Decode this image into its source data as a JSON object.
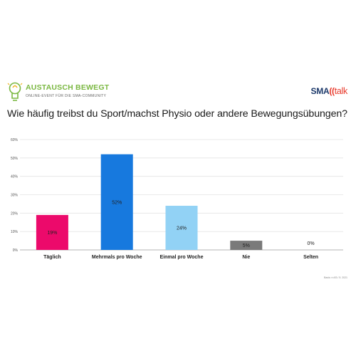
{
  "header": {
    "logo_name": "AUSTAUSCH BEWEGT",
    "logo_subtitle": "ONLINE-EVENT FÜR DIE SMA-COMMUNITY",
    "brand_sma": "SMA",
    "brand_quote": "((",
    "brand_talk": "talk",
    "question": "Wie häufig treibst du Sport/machst Physio oder andere Bewegungsübungen?"
  },
  "footnote": "Basis: n=83 / 5. 2021",
  "colors": {
    "accent_green": "#7bb842",
    "brand_navy": "#1d3a6b",
    "brand_red": "#e8392b"
  },
  "chart_data": {
    "type": "bar",
    "categories": [
      "Täglich",
      "Mehrmals pro Woche",
      "Einmal pro Woche",
      "Nie",
      "Selten"
    ],
    "values": [
      19,
      52,
      24,
      5,
      0
    ],
    "value_labels": [
      "19%",
      "52%",
      "24%",
      "5%",
      "0%"
    ],
    "colors": [
      "#ec0a6b",
      "#1779de",
      "#92d2f5",
      "#7a7a7a",
      "#cccccc"
    ],
    "y_ticks": [
      "0%",
      "10%",
      "20%",
      "30%",
      "40%",
      "50%",
      "60%"
    ],
    "ylim": [
      0,
      60
    ],
    "unit": "%",
    "grid": true,
    "title": "",
    "xlabel": "",
    "ylabel": ""
  }
}
